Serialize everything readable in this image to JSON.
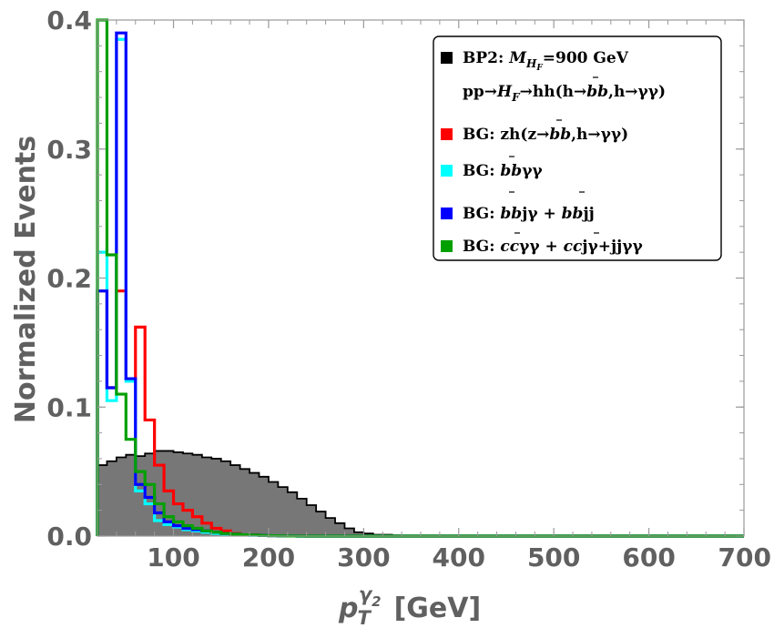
{
  "chart_data": {
    "type": "histogram",
    "xlabel": "p_T^{γ2} [GeV]",
    "xlabel_parts": {
      "base": "p",
      "sub": "T",
      "sup_main": "γ",
      "sup_sub": "2",
      "unit": "[GeV]"
    },
    "ylabel": "Normalized Events",
    "xlim": [
      20,
      700
    ],
    "ylim": [
      0,
      0.4
    ],
    "x_ticks": [
      100,
      200,
      300,
      400,
      500,
      600,
      700
    ],
    "y_ticks": [
      0.0,
      0.1,
      0.2,
      0.3,
      0.4
    ],
    "y_tick_labels": [
      "0.0",
      "0.1",
      "0.2",
      "0.3",
      "0.4"
    ],
    "bin_width": 10,
    "bin_start": 20,
    "grid": false,
    "legend_position": "top-right",
    "legend": [
      {
        "color": "#000000",
        "lines": [
          "BP2: M_HF = 900 GeV",
          "pp → H_F → hh(h → b b̄, h → γγ)"
        ]
      },
      {
        "color": "#ff0000",
        "lines": [
          "BG: zh(z → b b̄, h → γγ)"
        ]
      },
      {
        "color": "#00ffff",
        "lines": [
          "BG: b b̄ γγ"
        ]
      },
      {
        "color": "#0000ff",
        "lines": [
          "BG: b b̄ jγ + b b̄ jj"
        ]
      },
      {
        "color": "#00a000",
        "lines": [
          "BG: c c̄ γγ + c c̄ jγ + jjγγ"
        ]
      }
    ],
    "legend_text": {
      "bp2_prefix": "BP2: ",
      "bp2_mass": "M",
      "bp2_mass_sub": "H",
      "bp2_mass_subsub": "F",
      "bp2_value": "=900 GeV",
      "bp2_process": "pp→",
      "bp2_hf": "H",
      "bp2_hf_sub": "F",
      "bp2_rest": "→hh(h→",
      "bb": "bb",
      "bp2_tail": ",h→γγ)",
      "zh": "BG: zh(z→",
      "zh_tail": ",h→γγ)",
      "bbgg_prefix": "BG: ",
      "bbgg_tail": "γγ",
      "bbj_prefix": "BG: ",
      "bbj_mid": "jγ + ",
      "bbj_tail": "jj",
      "cc_prefix": "BG: ",
      "cc": "cc",
      "cc_mid1": "γγ + ",
      "cc_mid2": "jγ+jjγγ"
    },
    "series": [
      {
        "name": "BP2: M_HF=900 GeV",
        "color": "#000000",
        "fill": "#777777",
        "values": [
          0.055,
          0.058,
          0.061,
          0.063,
          0.062,
          0.064,
          0.066,
          0.066,
          0.065,
          0.064,
          0.063,
          0.061,
          0.06,
          0.058,
          0.055,
          0.052,
          0.049,
          0.046,
          0.042,
          0.038,
          0.034,
          0.029,
          0.024,
          0.019,
          0.014,
          0.01,
          0.006,
          0.003,
          0.002,
          0.001,
          0.001,
          0.0005,
          0.0003,
          0.0002,
          0.0001,
          0.0001,
          0.0001,
          0,
          0,
          0,
          0,
          0,
          0,
          0,
          0,
          0,
          0,
          0,
          0,
          0,
          0,
          0,
          0,
          0,
          0,
          0,
          0,
          0,
          0,
          0,
          0,
          0,
          0,
          0,
          0,
          0,
          0,
          0
        ]
      },
      {
        "name": "BG: zh(z→bb̄,h→γγ)",
        "color": "#ff0000",
        "values": [
          0.19,
          0.115,
          0.19,
          0.122,
          0.162,
          0.09,
          0.055,
          0.035,
          0.025,
          0.02,
          0.015,
          0.01,
          0.006,
          0.004,
          0.002,
          0.001,
          0.001,
          0.0005,
          0.0003,
          0.0002,
          0.0001,
          0.0001,
          0,
          0,
          0,
          0,
          0,
          0,
          0,
          0,
          0,
          0,
          0,
          0,
          0,
          0,
          0,
          0,
          0,
          0,
          0,
          0,
          0,
          0,
          0,
          0,
          0,
          0,
          0,
          0,
          0,
          0,
          0,
          0,
          0,
          0,
          0,
          0,
          0,
          0,
          0,
          0,
          0,
          0,
          0,
          0,
          0,
          0
        ]
      },
      {
        "name": "BG: bb̄γγ",
        "color": "#00ffff",
        "values": [
          0.22,
          0.105,
          0.385,
          0.12,
          0.035,
          0.025,
          0.012,
          0.009,
          0.007,
          0.005,
          0.004,
          0.003,
          0.002,
          0.0015,
          0.001,
          0.0008,
          0.0006,
          0.0004,
          0.0003,
          0.0002,
          0.0001,
          0,
          0,
          0,
          0,
          0,
          0,
          0,
          0,
          0,
          0,
          0,
          0,
          0,
          0,
          0,
          0,
          0,
          0,
          0,
          0,
          0,
          0,
          0,
          0,
          0,
          0,
          0,
          0,
          0,
          0,
          0,
          0,
          0,
          0,
          0,
          0,
          0,
          0,
          0,
          0,
          0,
          0,
          0,
          0,
          0,
          0,
          0
        ]
      },
      {
        "name": "BG: bb̄jγ+bb̄jj",
        "color": "#0000ff",
        "values": [
          0.19,
          0.115,
          0.39,
          0.122,
          0.04,
          0.03,
          0.018,
          0.011,
          0.008,
          0.006,
          0.005,
          0.004,
          0.003,
          0.002,
          0.0015,
          0.001,
          0.0008,
          0.0005,
          0.0003,
          0.0002,
          0.0001,
          0,
          0,
          0,
          0,
          0,
          0,
          0,
          0,
          0,
          0,
          0,
          0,
          0,
          0,
          0,
          0,
          0,
          0,
          0,
          0,
          0,
          0,
          0,
          0,
          0,
          0,
          0,
          0,
          0,
          0,
          0,
          0,
          0,
          0,
          0,
          0,
          0,
          0,
          0,
          0,
          0,
          0,
          0,
          0,
          0,
          0,
          0
        ]
      },
      {
        "name": "BG: cc̄γγ+cc̄jγ+jjγγ",
        "color": "#00a000",
        "values": [
          0.4,
          0.218,
          0.11,
          0.075,
          0.05,
          0.04,
          0.025,
          0.015,
          0.011,
          0.008,
          0.006,
          0.004,
          0.003,
          0.002,
          0.0015,
          0.001,
          0.0008,
          0.0005,
          0.0003,
          0.0002,
          0.0001,
          0,
          0,
          0,
          0,
          0,
          0,
          0,
          0,
          0,
          0,
          0,
          0,
          0,
          0,
          0,
          0,
          0,
          0,
          0,
          0,
          0,
          0,
          0,
          0,
          0,
          0,
          0,
          0,
          0,
          0,
          0,
          0,
          0,
          0,
          0,
          0,
          0,
          0,
          0,
          0,
          0,
          0,
          0,
          0,
          0,
          0,
          0
        ]
      }
    ]
  }
}
